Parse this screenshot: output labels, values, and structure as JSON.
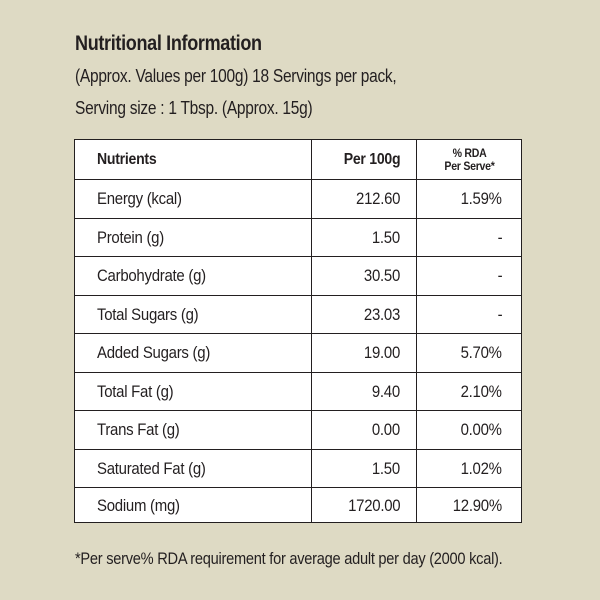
{
  "heading": {
    "title": "Nutritional Information",
    "line1": "(Approx. Values per 100g) 18 Servings per pack,",
    "line2": "Serving size : 1 Tbsp. (Approx. 15g)"
  },
  "table": {
    "headers": {
      "nutrients": "Nutrients",
      "per100g": "Per 100g",
      "rda_line1": "% RDA",
      "rda_line2": "Per Serve*"
    },
    "rows": [
      {
        "name": "Energy (kcal)",
        "per100g": "212.60",
        "rda": "1.59%"
      },
      {
        "name": "Protein (g)",
        "per100g": "1.50",
        "rda": "-"
      },
      {
        "name": "Carbohydrate (g)",
        "per100g": "30.50",
        "rda": "-"
      },
      {
        "name": "Total Sugars (g)",
        "per100g": "23.03",
        "rda": "-"
      },
      {
        "name": "Added Sugars (g)",
        "per100g": "19.00",
        "rda": "5.70%"
      },
      {
        "name": "Total Fat (g)",
        "per100g": "9.40",
        "rda": "2.10%"
      },
      {
        "name": "Trans Fat (g)",
        "per100g": "0.00",
        "rda": "0.00%"
      },
      {
        "name": "Saturated Fat (g)",
        "per100g": "1.50",
        "rda": "1.02%"
      },
      {
        "name": "Sodium (mg)",
        "per100g": "1720.00",
        "rda": "12.90%"
      }
    ]
  },
  "footnote": "*Per serve% RDA requirement for average adult per day (2000 kcal).",
  "colors": {
    "background": "#dedac4",
    "table_background": "#ffffff",
    "text": "#231f20"
  }
}
